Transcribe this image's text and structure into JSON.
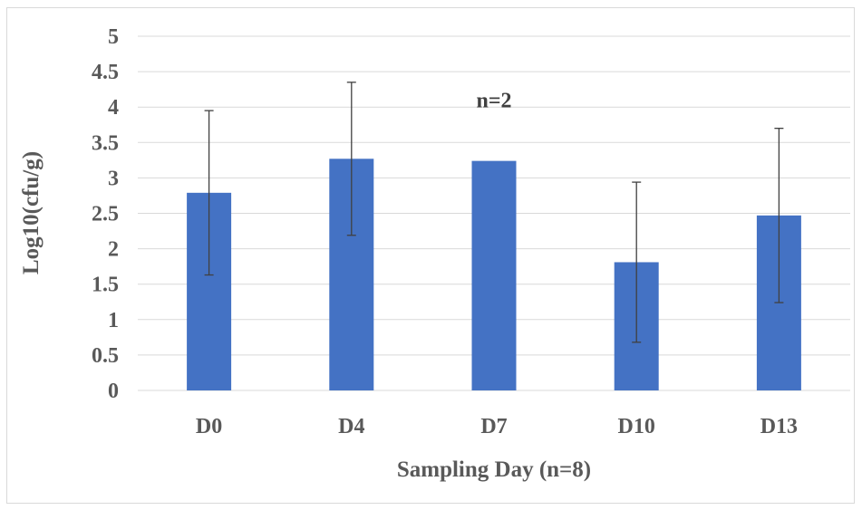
{
  "chart_data": {
    "type": "bar",
    "title": "",
    "xlabel": "Sampling Day (n=8)",
    "ylabel": "Log10(cfu/g)",
    "categories": [
      "D0",
      "D4",
      "D7",
      "D10",
      "D13"
    ],
    "values": [
      2.79,
      3.27,
      3.24,
      1.81,
      2.47
    ],
    "error": [
      1.16,
      1.08,
      null,
      1.13,
      1.23
    ],
    "ylim": [
      0,
      5
    ],
    "yticks": [
      "0",
      "0.5",
      "1",
      "1.5",
      "2",
      "2.5",
      "3",
      "3.5",
      "4",
      "4.5",
      "5"
    ],
    "ytick_values": [
      0,
      0.5,
      1,
      1.5,
      2,
      2.5,
      3,
      3.5,
      4,
      4.5,
      5
    ],
    "grid": true,
    "legend": "none",
    "bar_color": "#4472c4",
    "annotations": [
      {
        "text": "n=2",
        "category": "D7",
        "y": 4.1
      }
    ]
  }
}
